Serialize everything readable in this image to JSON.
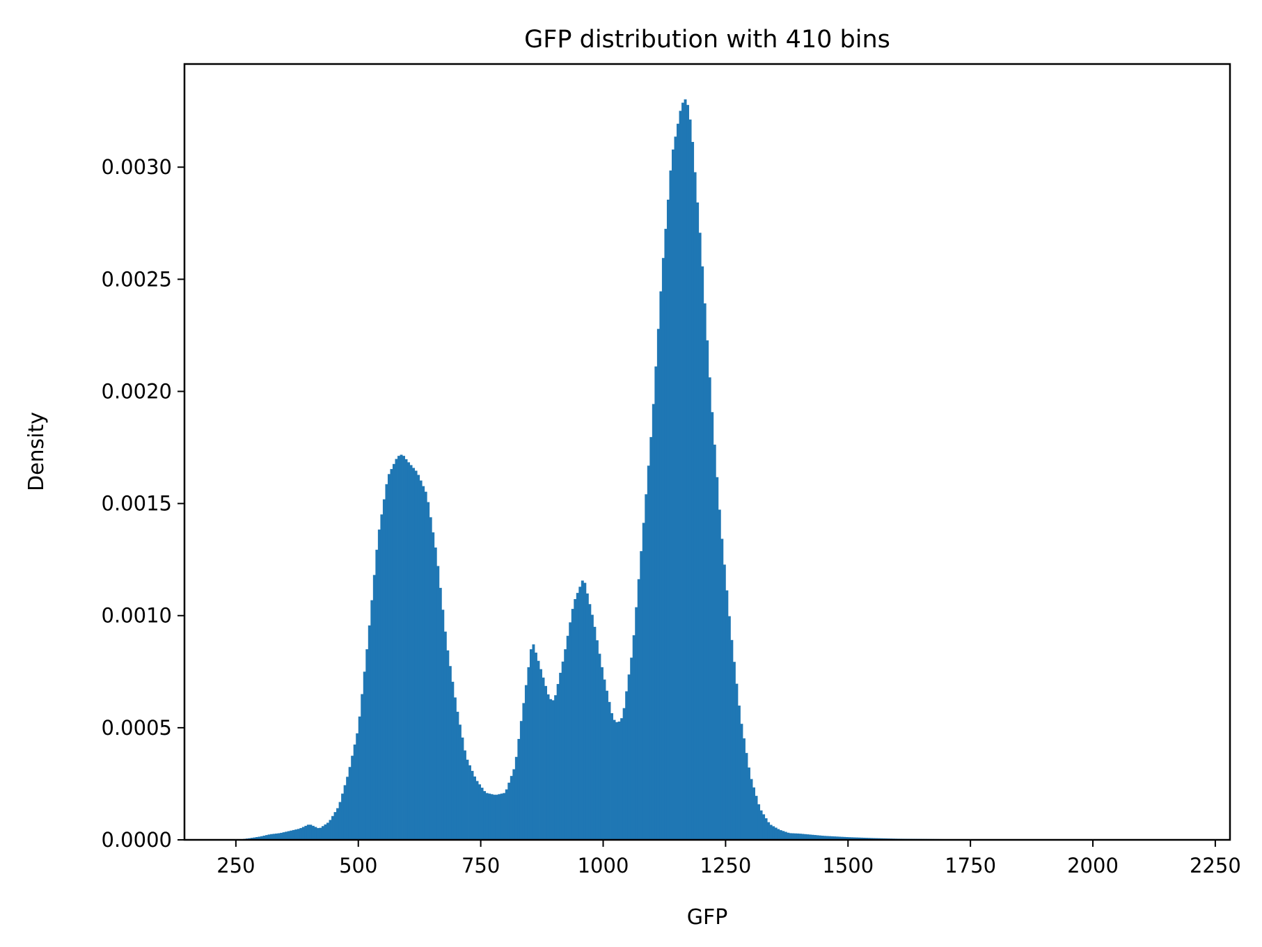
{
  "colors": {
    "bar_fill": "#1f77b4",
    "axes": "#000000",
    "background": "#ffffff"
  },
  "chart_data": {
    "type": "bar",
    "subtype": "histogram",
    "title": "GFP distribution with 410 bins",
    "xlabel": "GFP",
    "ylabel": "Density",
    "bins": 410,
    "xlim": [
      145,
      2280
    ],
    "ylim": [
      0,
      0.00346
    ],
    "xticks": [
      250,
      500,
      750,
      1000,
      1250,
      1500,
      1750,
      2000,
      2250
    ],
    "xtick_labels": [
      "250",
      "500",
      "750",
      "1000",
      "1250",
      "1500",
      "1750",
      "2000",
      "2250"
    ],
    "yticks": [
      0,
      0.0005,
      0.001,
      0.0015,
      0.002,
      0.0025,
      0.003
    ],
    "ytick_labels": [
      "0.0000",
      "0.0005",
      "0.0010",
      "0.0015",
      "0.0020",
      "0.0025",
      "0.0030"
    ],
    "grid": false,
    "legend": false,
    "x": [
      260,
      280,
      300,
      320,
      340,
      360,
      380,
      400,
      420,
      440,
      460,
      480,
      500,
      520,
      540,
      560,
      580,
      590,
      600,
      620,
      640,
      660,
      680,
      700,
      720,
      740,
      760,
      780,
      800,
      820,
      840,
      855,
      870,
      890,
      900,
      920,
      940,
      960,
      980,
      1000,
      1020,
      1030,
      1040,
      1060,
      1080,
      1100,
      1120,
      1140,
      1160,
      1170,
      1180,
      1200,
      1220,
      1240,
      1260,
      1280,
      1300,
      1320,
      1340,
      1360,
      1380,
      1400,
      1450,
      1500,
      1550,
      1600,
      1650,
      1700,
      1750,
      1780,
      1800
    ],
    "y": [
      2e-06,
      8e-06,
      1.5e-05,
      2.5e-05,
      3e-05,
      4e-05,
      5e-05,
      7e-05,
      5e-05,
      8e-05,
      0.00015,
      0.0003,
      0.0005,
      0.0009,
      0.00135,
      0.00162,
      0.00171,
      0.00172,
      0.00169,
      0.00164,
      0.00154,
      0.00127,
      0.00088,
      0.0006,
      0.00037,
      0.00027,
      0.00021,
      0.0002,
      0.00021,
      0.00033,
      0.00065,
      0.00089,
      0.00078,
      0.00063,
      0.00062,
      0.00082,
      0.00106,
      0.00117,
      0.00098,
      0.00074,
      0.00054,
      0.00052,
      0.00055,
      0.00085,
      0.00135,
      0.00186,
      0.00253,
      0.00305,
      0.00328,
      0.00331,
      0.00318,
      0.00264,
      0.00198,
      0.0014,
      0.00094,
      0.00055,
      0.00029,
      0.00014,
      7e-05,
      4.5e-05,
      3e-05,
      2.8e-05,
      1.8e-05,
      1.2e-05,
      8e-06,
      5e-06,
      4e-06,
      3e-06,
      2e-06,
      1e-06,
      0
    ]
  }
}
